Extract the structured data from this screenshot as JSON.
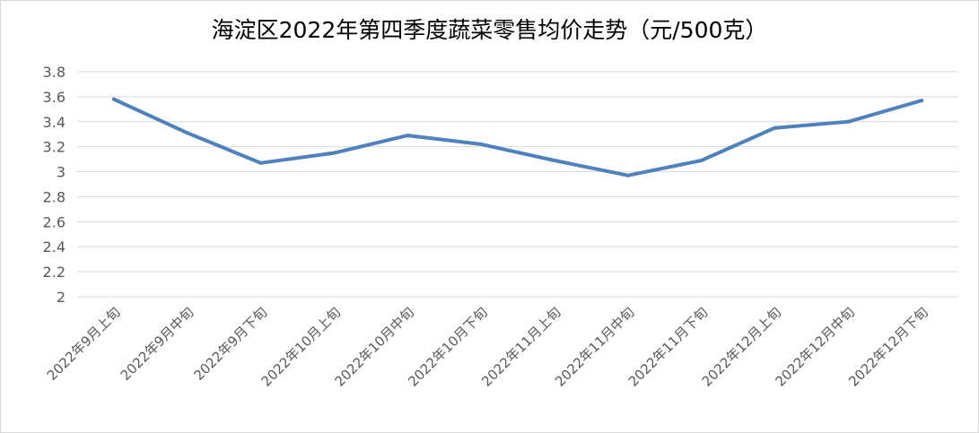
{
  "chart_data": {
    "type": "line",
    "title": "海淀区2022年第四季度蔬菜零售均价走势（元/500克）",
    "categories": [
      "2022年9月上旬",
      "2022年9月中旬",
      "2022年9月下旬",
      "2022年10月上旬",
      "2022年10月中旬",
      "2022年10月下旬",
      "2022年11月上旬",
      "2022年11月中旬",
      "2022年11月下旬",
      "2022年12月上旬",
      "2022年12月中旬",
      "2022年12月下旬"
    ],
    "series": [
      {
        "values": [
          3.58,
          3.31,
          3.07,
          3.15,
          3.29,
          3.22,
          3.09,
          2.97,
          3.09,
          3.35,
          3.4,
          3.57
        ]
      }
    ],
    "y_ticks": [
      "2",
      "2.2",
      "2.4",
      "2.6",
      "2.8",
      "3",
      "3.2",
      "3.4",
      "3.6",
      "3.8"
    ],
    "ylim": [
      2,
      3.8
    ],
    "grid": true,
    "legend": "none",
    "xlabel": "",
    "ylabel": "",
    "colors": {
      "line": "#4f81bd",
      "grid": "#d9d9d9",
      "axis": "#d9d9d9",
      "text": "#595959"
    }
  }
}
